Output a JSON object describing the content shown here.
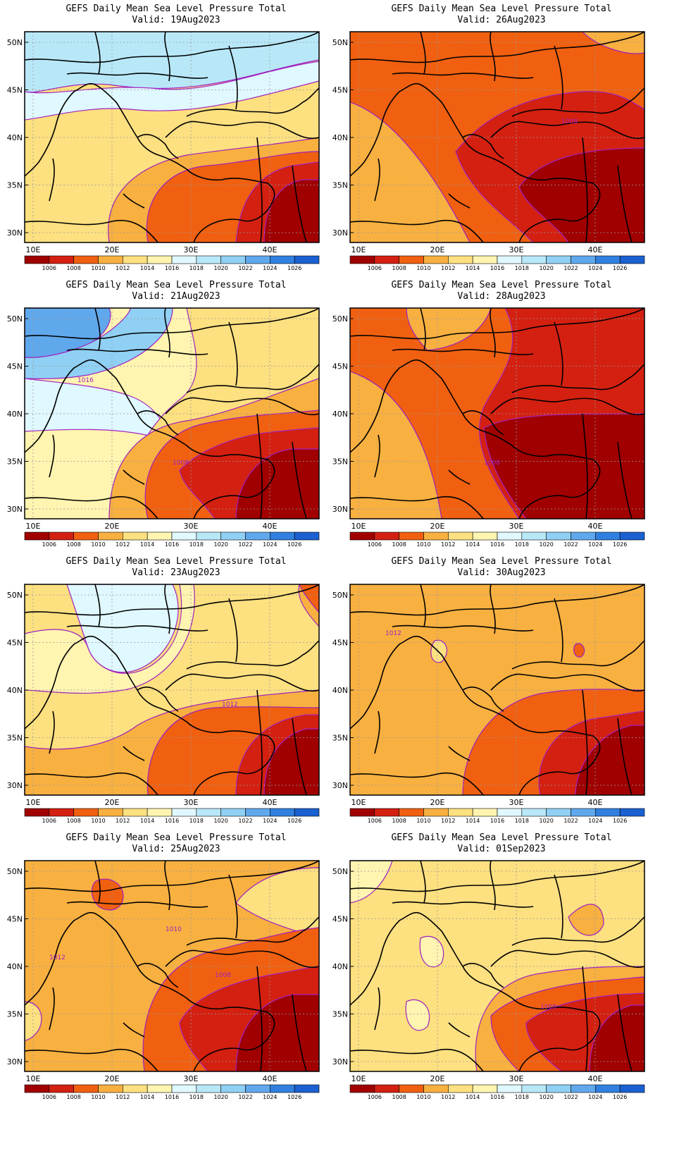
{
  "panels": [
    {
      "title": "GEFS Daily Mean Sea Level Pressure Total",
      "valid": "Valid: 19Aug2023",
      "contour_labels": []
    },
    {
      "title": "GEFS Daily Mean Sea Level Pressure Total",
      "valid": "Valid: 26Aug2023",
      "contour_labels": [
        "1008"
      ]
    },
    {
      "title": "GEFS Daily Mean Sea Level Pressure Total",
      "valid": "Valid: 21Aug2023",
      "contour_labels": [
        "1016",
        "1008"
      ]
    },
    {
      "title": "GEFS Daily Mean Sea Level Pressure Total",
      "valid": "Valid: 28Aug2023",
      "contour_labels": [
        "1008"
      ]
    },
    {
      "title": "GEFS Daily Mean Sea Level Pressure Total",
      "valid": "Valid: 23Aug2023",
      "contour_labels": [
        "1012"
      ]
    },
    {
      "title": "GEFS Daily Mean Sea Level Pressure Total",
      "valid": "Valid: 30Aug2023",
      "contour_labels": [
        "1012"
      ]
    },
    {
      "title": "GEFS Daily Mean Sea Level Pressure Total",
      "valid": "Valid: 25Aug2023",
      "contour_labels": [
        "1012",
        "1010",
        "1008"
      ]
    },
    {
      "title": "GEFS Daily Mean Sea Level Pressure Total",
      "valid": "Valid: 01Sep2023",
      "contour_labels": [
        "1008"
      ]
    }
  ],
  "lat_labels": [
    "50N",
    "45N",
    "40N",
    "35N",
    "30N"
  ],
  "lon_labels": [
    "10E",
    "20E",
    "30E",
    "40E"
  ],
  "colorbar": {
    "labels": [
      "1006",
      "1008",
      "1010",
      "1012",
      "1014",
      "1016",
      "1018",
      "1020",
      "1022",
      "1024",
      "1026"
    ],
    "colors": [
      "#a00000",
      "#d42010",
      "#f06010",
      "#f8b040",
      "#fde080",
      "#fff4b0",
      "#e0f8ff",
      "#b8e8f8",
      "#90d0f4",
      "#60a8ec",
      "#3080e0",
      "#1a60d0"
    ]
  }
}
